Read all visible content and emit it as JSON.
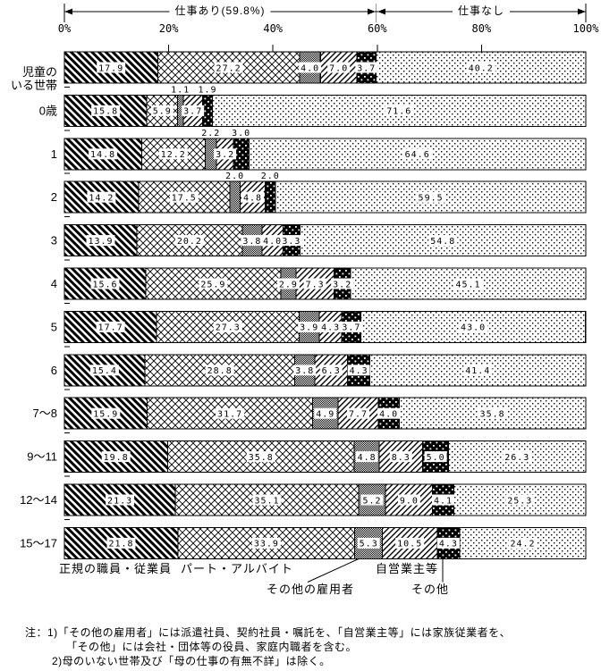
{
  "header": {
    "work_label": "仕事あり(59.8%)",
    "nowork_label": "仕事なし",
    "split_percent": 59.8
  },
  "axis": {
    "tick_labels": [
      "0%",
      "20%",
      "40%",
      "60%",
      "80%",
      "100%"
    ],
    "tick_values": [
      0,
      20,
      40,
      60,
      80,
      100
    ]
  },
  "chart_data": {
    "type": "bar",
    "orientation": "horizontal",
    "stacked": true,
    "xlim": [
      0,
      100
    ],
    "categories": [
      "児童の\nいる世帯",
      "0歳",
      "1",
      "2",
      "3",
      "4",
      "5",
      "6",
      "7～8",
      "9～11",
      "12～14",
      "15～17"
    ],
    "series": [
      {
        "name": "正規の職員・従業員",
        "pattern": "diagonal-dense",
        "values": [
          17.9,
          15.8,
          14.8,
          14.2,
          13.9,
          15.6,
          17.7,
          15.4,
          15.9,
          19.8,
          21.3,
          21.8
        ]
      },
      {
        "name": "パート・アルバイト",
        "pattern": "diamond-lattice",
        "values": [
          27.2,
          5.9,
          12.2,
          17.5,
          20.2,
          25.9,
          27.3,
          28.8,
          31.7,
          35.8,
          35.1,
          33.9
        ]
      },
      {
        "name": "その他の雇用者",
        "pattern": "fine-check",
        "values": [
          4.0,
          1.1,
          2.2,
          2.0,
          3.8,
          2.9,
          3.9,
          3.8,
          4.9,
          4.8,
          5.2,
          5.3
        ]
      },
      {
        "name": "自営業主等",
        "pattern": "diagonal-thin",
        "values": [
          7.0,
          3.7,
          3.2,
          4.8,
          4.0,
          7.3,
          4.3,
          6.3,
          7.7,
          8.3,
          9.0,
          10.5
        ]
      },
      {
        "name": "その他",
        "pattern": "black-dots",
        "values": [
          3.7,
          1.9,
          3.0,
          2.0,
          3.3,
          3.2,
          3.7,
          4.3,
          4.0,
          5.0,
          4.1,
          4.3
        ]
      },
      {
        "name": "仕事なし",
        "pattern": "sparse-dots",
        "values": [
          40.2,
          71.6,
          64.6,
          59.5,
          54.8,
          45.1,
          43.0,
          41.4,
          35.8,
          26.3,
          25.3,
          24.2
        ]
      }
    ],
    "labels_above_bar": {
      "rows": [
        1,
        2,
        3
      ],
      "series": [
        2,
        4
      ]
    }
  },
  "legend": {
    "regular": "正規の職員・従業員",
    "part_time": "パート・アルバイト",
    "other_employee": "その他の雇用者",
    "self_employed": "自営業主等",
    "other": "その他"
  },
  "notes": {
    "line1": "注：1)「その他の雇用者」には派遣社員、契約社員・嘱託を、「自営業主等」には家族従業者を、",
    "line2": "「その他」には会社・団体等の役員、家庭内職者を含む。",
    "line3": "2)母のいない世帯及び「母の仕事の有無不詳」は除く。"
  }
}
